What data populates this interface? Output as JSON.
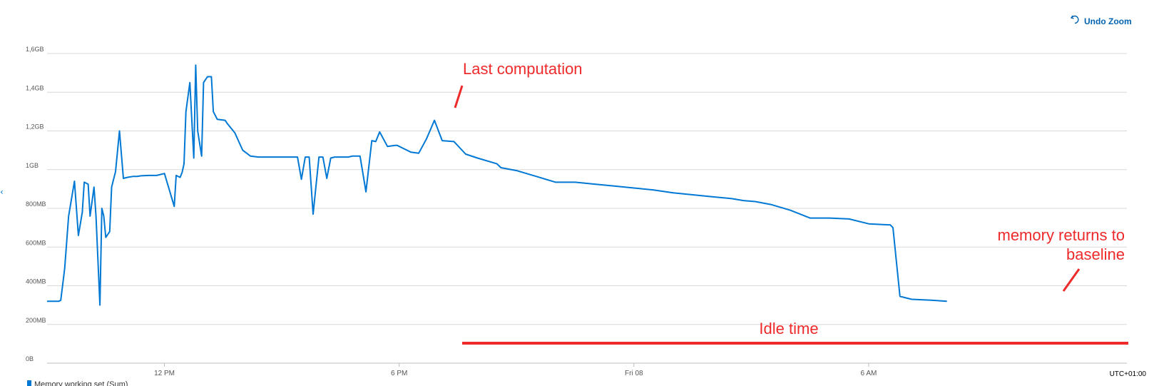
{
  "toolbar": {
    "undo_zoom_label": "Undo Zoom",
    "undo_icon": "undo-icon"
  },
  "legend": {
    "label": "Memory working set (Sum)",
    "color": "#0078d4"
  },
  "timezone_label": "UTC+01:00",
  "annotations": {
    "last_computation": "Last computation",
    "memory_returns_line1": "memory returns to",
    "memory_returns_line2": "baseline",
    "idle_time": "Idle time",
    "color": "#ee2a2a"
  },
  "chart_data": {
    "type": "line",
    "title": "",
    "xlabel": "",
    "ylabel": "",
    "x_ticks": [
      "12 PM",
      "6 PM",
      "Fri 08",
      "6 AM"
    ],
    "x_tick_hours": [
      3,
      9,
      15,
      21
    ],
    "y_ticks": [
      "0B",
      "200MB",
      "400MB",
      "600MB",
      "800MB",
      "1GB",
      "1,2GB",
      "1,4GB",
      "1,6GB"
    ],
    "ylim_mb": [
      0,
      1600
    ],
    "grid": true,
    "x_unit": "hours since 9 AM Thursday",
    "series": [
      {
        "name": "Memory working set (Sum)",
        "color": "#0078d4",
        "x": [
          0,
          0.3,
          0.35,
          0.45,
          0.55,
          0.7,
          0.8,
          0.9,
          0.95,
          1.05,
          1.1,
          1.2,
          1.25,
          1.35,
          1.4,
          1.45,
          1.5,
          1.6,
          1.65,
          1.75,
          1.85,
          1.95,
          2.05,
          2.2,
          2.3,
          2.4,
          2.6,
          2.8,
          3.0,
          3.25,
          3.3,
          3.4,
          3.45,
          3.5,
          3.55,
          3.65,
          3.75,
          3.8,
          3.85,
          3.95,
          4.0,
          4.1,
          4.2,
          4.25,
          4.35,
          4.55,
          4.6,
          4.8,
          5.0,
          5.1,
          5.2,
          5.4,
          5.6,
          6.0,
          6.4,
          6.5,
          6.6,
          6.7,
          6.8,
          6.95,
          7.05,
          7.15,
          7.25,
          7.35,
          7.45,
          7.6,
          7.7,
          7.8,
          8.0,
          8.15,
          8.3,
          8.4,
          8.5,
          8.7,
          8.9,
          8.95,
          9.1,
          9.3,
          9.5,
          9.7,
          9.9,
          10.1,
          10.4,
          10.7,
          11.0,
          11.5,
          11.6,
          12.0,
          12.5,
          13.0,
          13.5,
          14.0,
          14.5,
          15.0,
          15.5,
          16.0,
          16.5,
          17.0,
          17.5,
          17.8,
          18.1,
          18.5,
          19.0,
          19.5,
          20.0,
          20.5,
          21.0,
          21.5,
          21.55,
          21.62,
          21.8,
          22.1,
          22.6,
          23.0
        ],
        "values": [
          320,
          320,
          325,
          490,
          760,
          940,
          660,
          780,
          935,
          925,
          760,
          910,
          760,
          300,
          800,
          760,
          650,
          680,
          910,
          990,
          1200,
          955,
          960,
          965,
          965,
          968,
          970,
          970,
          980,
          810,
          970,
          960,
          985,
          1030,
          1300,
          1450,
          1060,
          1540,
          1200,
          1070,
          1450,
          1480,
          1480,
          1300,
          1260,
          1255,
          1240,
          1190,
          1100,
          1085,
          1070,
          1065,
          1065,
          1065,
          1065,
          950,
          1065,
          1065,
          770,
          1065,
          1065,
          955,
          1060,
          1065,
          1065,
          1065,
          1065,
          1070,
          1070,
          885,
          1150,
          1145,
          1195,
          1120,
          1125,
          1125,
          1110,
          1090,
          1085,
          1160,
          1255,
          1150,
          1145,
          1080,
          1060,
          1030,
          1010,
          995,
          965,
          935,
          935,
          925,
          915,
          905,
          895,
          880,
          870,
          860,
          850,
          840,
          835,
          820,
          790,
          750,
          750,
          745,
          720,
          715,
          715,
          700,
          345,
          330,
          325,
          320
        ]
      }
    ]
  }
}
